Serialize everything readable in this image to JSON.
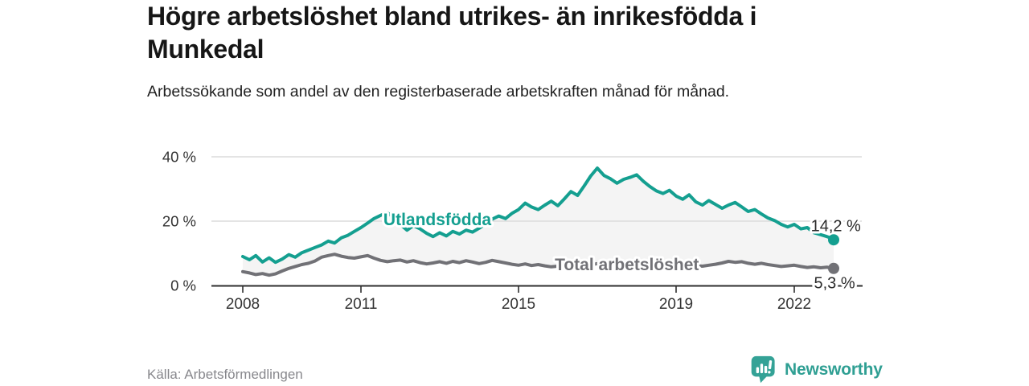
{
  "header": {
    "title": "Högre arbetslöshet bland utrikes- än inrikesfödda i Munkedal",
    "subtitle": "Arbetssökande som andel av den registerbaserade arbetskraften månad för månad."
  },
  "footer": {
    "source": "Källa: Arbetsförmedlingen",
    "brand": "Newsworthy",
    "brand_icon": "bar-chart-speech-bubble-icon"
  },
  "colors": {
    "accent_teal": "#149f90",
    "total_gray": "#717176",
    "band_fill": "#f4f4f4",
    "gridline": "#dcdcdc",
    "axis": "#2e2e2e",
    "axis_text": "#333333",
    "end_label_text": "#2b2b2b",
    "logo_teal": "#34a296"
  },
  "chart_data": {
    "type": "line",
    "title": "",
    "xlabel": "",
    "ylabel": "",
    "x_unit": "year (monthly observations)",
    "y_unit": "percent",
    "ylim": [
      0,
      40
    ],
    "xlim": [
      2007.2,
      2023.7
    ],
    "grid": "horizontal",
    "legend_position": "inline-labels",
    "band_fill_between_series": true,
    "y_ticks": [
      {
        "value": 0,
        "label": "0 %"
      },
      {
        "value": 20,
        "label": "20 %"
      },
      {
        "value": 40,
        "label": "40 %"
      }
    ],
    "x_ticks": [
      {
        "value": 2008,
        "label": "2008"
      },
      {
        "value": 2011,
        "label": "2011"
      },
      {
        "value": 2015,
        "label": "2015"
      },
      {
        "value": 2019,
        "label": "2019"
      },
      {
        "value": 2022,
        "label": "2022"
      }
    ],
    "series": [
      {
        "name": "Utlandsfödda",
        "color": "#149f90",
        "label_pos": {
          "x": 2011.57,
          "y": 18.75
        },
        "end_label": {
          "text": "14,2 %",
          "x": 2022.42,
          "y": 16.9
        },
        "end_value": 14.2,
        "points": [
          [
            2008.0,
            9.0
          ],
          [
            2008.17,
            8.0
          ],
          [
            2008.33,
            9.3
          ],
          [
            2008.5,
            7.3
          ],
          [
            2008.67,
            8.6
          ],
          [
            2008.83,
            7.2
          ],
          [
            2009.0,
            8.2
          ],
          [
            2009.17,
            9.6
          ],
          [
            2009.33,
            8.8
          ],
          [
            2009.5,
            10.2
          ],
          [
            2009.67,
            11.0
          ],
          [
            2009.83,
            11.8
          ],
          [
            2010.0,
            12.6
          ],
          [
            2010.17,
            13.8
          ],
          [
            2010.33,
            13.2
          ],
          [
            2010.5,
            14.8
          ],
          [
            2010.67,
            15.6
          ],
          [
            2010.83,
            16.8
          ],
          [
            2011.0,
            18.0
          ],
          [
            2011.17,
            19.4
          ],
          [
            2011.33,
            20.8
          ],
          [
            2011.5,
            21.8
          ],
          [
            2011.67,
            22.6
          ],
          [
            2011.83,
            21.2
          ],
          [
            2012.0,
            19.0
          ],
          [
            2012.17,
            17.2
          ],
          [
            2012.33,
            18.6
          ],
          [
            2012.5,
            17.6
          ],
          [
            2012.67,
            16.2
          ],
          [
            2012.83,
            15.2
          ],
          [
            2013.0,
            16.4
          ],
          [
            2013.17,
            15.4
          ],
          [
            2013.33,
            16.8
          ],
          [
            2013.5,
            16.0
          ],
          [
            2013.67,
            17.2
          ],
          [
            2013.83,
            16.6
          ],
          [
            2014.0,
            17.8
          ],
          [
            2014.17,
            19.2
          ],
          [
            2014.33,
            20.6
          ],
          [
            2014.5,
            21.6
          ],
          [
            2014.67,
            20.8
          ],
          [
            2014.83,
            22.4
          ],
          [
            2015.0,
            23.6
          ],
          [
            2015.17,
            25.6
          ],
          [
            2015.33,
            24.4
          ],
          [
            2015.5,
            23.6
          ],
          [
            2015.67,
            25.0
          ],
          [
            2015.83,
            26.2
          ],
          [
            2016.0,
            24.8
          ],
          [
            2016.17,
            27.0
          ],
          [
            2016.33,
            29.2
          ],
          [
            2016.5,
            28.0
          ],
          [
            2016.67,
            31.0
          ],
          [
            2016.83,
            34.0
          ],
          [
            2017.0,
            36.5
          ],
          [
            2017.17,
            34.2
          ],
          [
            2017.33,
            33.2
          ],
          [
            2017.5,
            31.8
          ],
          [
            2017.67,
            33.0
          ],
          [
            2017.83,
            33.6
          ],
          [
            2018.0,
            34.4
          ],
          [
            2018.17,
            32.4
          ],
          [
            2018.33,
            30.8
          ],
          [
            2018.5,
            29.4
          ],
          [
            2018.67,
            28.6
          ],
          [
            2018.83,
            29.6
          ],
          [
            2019.0,
            27.8
          ],
          [
            2019.17,
            26.8
          ],
          [
            2019.33,
            28.2
          ],
          [
            2019.5,
            26.0
          ],
          [
            2019.67,
            25.0
          ],
          [
            2019.83,
            26.4
          ],
          [
            2020.0,
            25.2
          ],
          [
            2020.17,
            24.0
          ],
          [
            2020.33,
            25.0
          ],
          [
            2020.5,
            25.8
          ],
          [
            2020.67,
            24.4
          ],
          [
            2020.83,
            23.0
          ],
          [
            2021.0,
            23.6
          ],
          [
            2021.17,
            22.2
          ],
          [
            2021.33,
            21.0
          ],
          [
            2021.5,
            20.2
          ],
          [
            2021.67,
            19.0
          ],
          [
            2021.83,
            18.2
          ],
          [
            2022.0,
            19.0
          ],
          [
            2022.17,
            17.6
          ],
          [
            2022.33,
            18.0
          ],
          [
            2022.5,
            16.4
          ],
          [
            2022.67,
            15.8
          ],
          [
            2022.83,
            15.2
          ],
          [
            2022.92,
            14.8
          ],
          [
            2023.0,
            14.2
          ]
        ]
      },
      {
        "name": "Total arbetslöshet",
        "color": "#717176",
        "label_pos": {
          "x": 2015.92,
          "y": 4.7
        },
        "end_label": {
          "text": "5,3 %",
          "x": 2022.5,
          "y": -0.9
        },
        "end_value": 5.3,
        "points": [
          [
            2008.0,
            4.3
          ],
          [
            2008.17,
            3.9
          ],
          [
            2008.33,
            3.4
          ],
          [
            2008.5,
            3.7
          ],
          [
            2008.67,
            3.2
          ],
          [
            2008.83,
            3.6
          ],
          [
            2009.0,
            4.5
          ],
          [
            2009.17,
            5.3
          ],
          [
            2009.33,
            5.9
          ],
          [
            2009.5,
            6.5
          ],
          [
            2009.67,
            6.9
          ],
          [
            2009.83,
            7.6
          ],
          [
            2010.0,
            8.8
          ],
          [
            2010.17,
            9.3
          ],
          [
            2010.33,
            9.7
          ],
          [
            2010.5,
            9.1
          ],
          [
            2010.67,
            8.7
          ],
          [
            2010.83,
            8.5
          ],
          [
            2011.0,
            8.9
          ],
          [
            2011.17,
            9.3
          ],
          [
            2011.33,
            8.5
          ],
          [
            2011.5,
            7.8
          ],
          [
            2011.67,
            7.4
          ],
          [
            2011.83,
            7.7
          ],
          [
            2012.0,
            7.9
          ],
          [
            2012.17,
            7.3
          ],
          [
            2012.33,
            7.7
          ],
          [
            2012.5,
            7.1
          ],
          [
            2012.67,
            6.7
          ],
          [
            2012.83,
            7.0
          ],
          [
            2013.0,
            7.4
          ],
          [
            2013.17,
            6.9
          ],
          [
            2013.33,
            7.5
          ],
          [
            2013.5,
            7.1
          ],
          [
            2013.67,
            7.7
          ],
          [
            2013.83,
            7.3
          ],
          [
            2014.0,
            6.8
          ],
          [
            2014.17,
            7.2
          ],
          [
            2014.33,
            7.8
          ],
          [
            2014.5,
            7.4
          ],
          [
            2014.67,
            7.0
          ],
          [
            2014.83,
            6.6
          ],
          [
            2015.0,
            6.3
          ],
          [
            2015.17,
            6.7
          ],
          [
            2015.33,
            6.2
          ],
          [
            2015.5,
            6.5
          ],
          [
            2015.67,
            6.1
          ],
          [
            2015.83,
            5.8
          ],
          [
            2016.0,
            6.0
          ],
          [
            2016.17,
            6.4
          ],
          [
            2016.33,
            6.1
          ],
          [
            2016.5,
            6.5
          ],
          [
            2016.67,
            6.7
          ],
          [
            2016.83,
            6.4
          ],
          [
            2017.0,
            6.8
          ],
          [
            2017.17,
            6.5
          ],
          [
            2017.33,
            6.2
          ],
          [
            2017.5,
            6.6
          ],
          [
            2017.67,
            6.3
          ],
          [
            2017.83,
            6.5
          ],
          [
            2018.0,
            6.7
          ],
          [
            2018.17,
            6.4
          ],
          [
            2018.33,
            6.1
          ],
          [
            2018.5,
            5.9
          ],
          [
            2018.67,
            6.2
          ],
          [
            2018.83,
            6.0
          ],
          [
            2019.0,
            6.3
          ],
          [
            2019.17,
            6.1
          ],
          [
            2019.33,
            6.5
          ],
          [
            2019.5,
            6.2
          ],
          [
            2019.67,
            6.0
          ],
          [
            2019.83,
            6.3
          ],
          [
            2020.0,
            6.6
          ],
          [
            2020.17,
            7.0
          ],
          [
            2020.33,
            7.5
          ],
          [
            2020.5,
            7.2
          ],
          [
            2020.67,
            7.4
          ],
          [
            2020.83,
            6.9
          ],
          [
            2021.0,
            6.6
          ],
          [
            2021.17,
            6.9
          ],
          [
            2021.33,
            6.5
          ],
          [
            2021.5,
            6.2
          ],
          [
            2021.67,
            5.9
          ],
          [
            2021.83,
            6.1
          ],
          [
            2022.0,
            6.3
          ],
          [
            2022.17,
            5.9
          ],
          [
            2022.33,
            5.6
          ],
          [
            2022.5,
            5.8
          ],
          [
            2022.67,
            5.5
          ],
          [
            2022.83,
            5.7
          ],
          [
            2022.92,
            5.4
          ],
          [
            2023.0,
            5.3
          ]
        ]
      }
    ]
  }
}
